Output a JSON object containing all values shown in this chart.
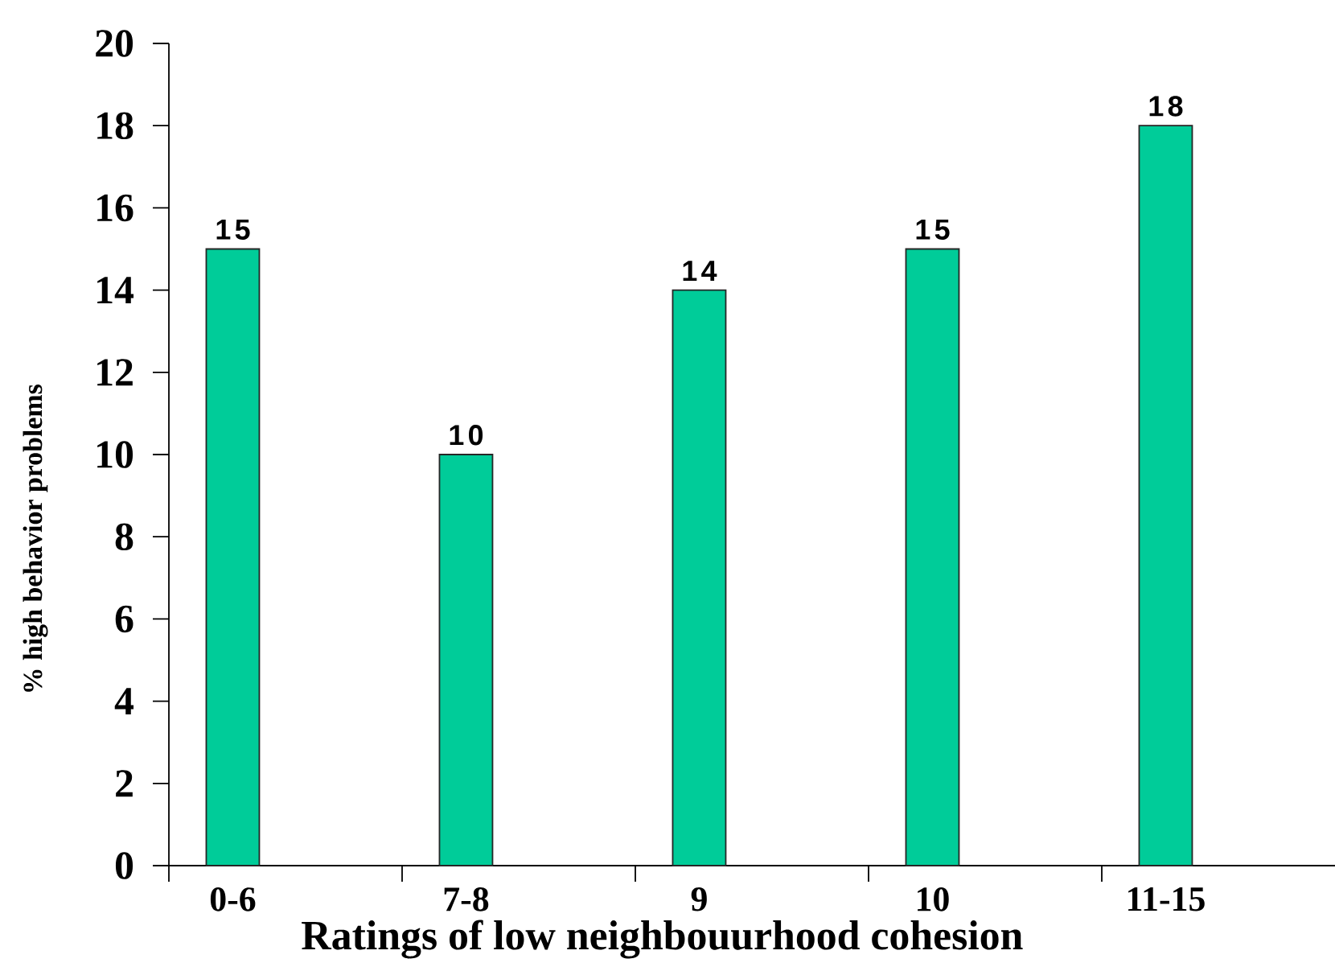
{
  "chart_data": {
    "type": "bar",
    "xlabel": "Ratings of low neighbouurhood cohesion",
    "ylabel": "% high behavior problems",
    "categories": [
      "0-6",
      "7-8",
      "9",
      "10",
      "11-15"
    ],
    "values": [
      15,
      10,
      14,
      15,
      18
    ],
    "color": "#00cc99",
    "ylim": [
      0,
      20
    ],
    "yticks": [
      0,
      2,
      4,
      6,
      8,
      10,
      12,
      14,
      16,
      18,
      20
    ],
    "data_labels": true
  }
}
